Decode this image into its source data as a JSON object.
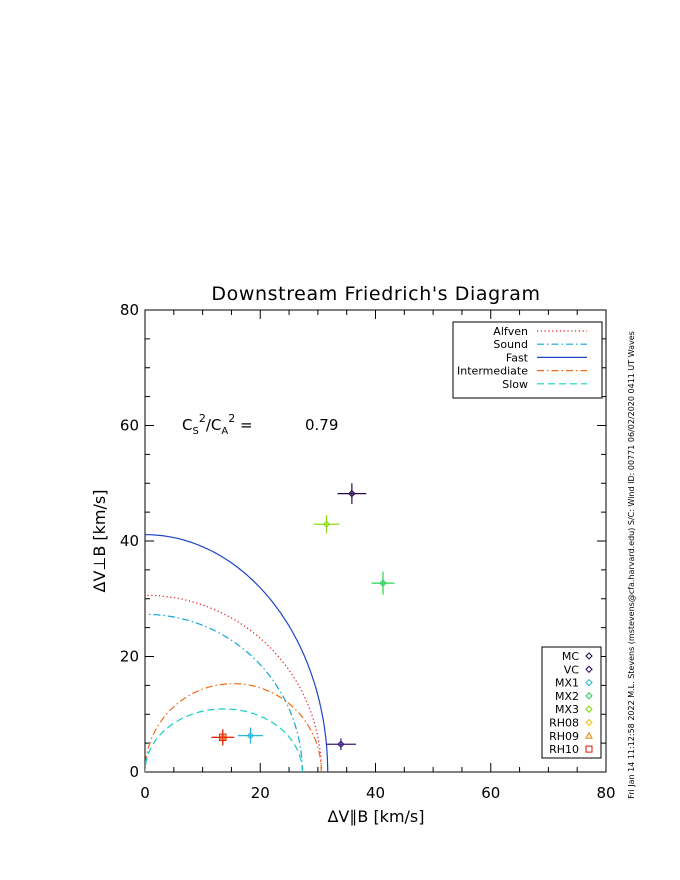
{
  "chart_data": {
    "type": "scatter",
    "title": "Downstream Friedrich's Diagram",
    "xlabel": "ΔV∥B [km/s]",
    "ylabel": "ΔV⊥B [km/s]",
    "xlim": [
      0,
      80
    ],
    "ylim": [
      0,
      80
    ],
    "x_ticks": [
      0,
      20,
      40,
      60,
      80
    ],
    "y_ticks": [
      0,
      20,
      40,
      60,
      80
    ],
    "annotation": {
      "ratio_text": "0.79",
      "ratio_value": 0.79
    },
    "wave_curves": {
      "legend_placement": "top-right",
      "entries": [
        {
          "name": "Alfven",
          "color": "#e8131f",
          "dash": "dotted",
          "speed": 30.6
        },
        {
          "name": "Sound",
          "color": "#12a6d8",
          "dash": "dash-dot",
          "speed": 27.3
        },
        {
          "name": "Fast",
          "color": "#1c45c8",
          "dash": "solid",
          "speed": 41.1,
          "x_max": 31.7
        },
        {
          "name": "Intermediate",
          "color": "#ef6b17",
          "dash": "dash-dot",
          "speed": 30.6
        },
        {
          "name": "Slow",
          "color": "#16cfc1",
          "dash": "dashed",
          "speed": 27.3,
          "x_max": 27.3
        }
      ]
    },
    "solutions": {
      "legend_placement": "bottom-right",
      "series": [
        {
          "name": "MC",
          "marker": "diamond",
          "color": "#2c0a4f",
          "x": 35.9,
          "y": 48.2,
          "x_err": 2.5,
          "y_err": 1.8
        },
        {
          "name": "VC",
          "marker": "diamond",
          "color": "#3d1a78",
          "x": 34.0,
          "y": 4.8,
          "x_err": 2.6,
          "y_err": 1.0
        },
        {
          "name": "MX1",
          "marker": "diamond",
          "color": "#2bb7d9",
          "x": 18.3,
          "y": 6.3,
          "x_err": 2.2,
          "y_err": 1.4
        },
        {
          "name": "MX2",
          "marker": "diamond",
          "color": "#29d456",
          "x": 41.3,
          "y": 32.7,
          "x_err": 2.0,
          "y_err": 2.0
        },
        {
          "name": "MX3",
          "marker": "diamond",
          "color": "#8fd81a",
          "x": 31.5,
          "y": 42.9,
          "x_err": 2.2,
          "y_err": 1.6
        },
        {
          "name": "RH08",
          "marker": "diamond",
          "color": "#f2c013",
          "x": 13.5,
          "y": 6.0,
          "x_err": 1.5,
          "y_err": 1.2
        },
        {
          "name": "RH09",
          "marker": "triangle",
          "color": "#f08a18",
          "x": 13.5,
          "y": 6.0,
          "x_err": 1.8,
          "y_err": 1.3
        },
        {
          "name": "RH10",
          "marker": "square",
          "color": "#e8251c",
          "x": 13.5,
          "y": 6.0,
          "x_err": 2.0,
          "y_err": 1.4
        }
      ]
    }
  },
  "side_note": "Fri Jan 14 11:12:58 2022  M.L. Stevens (mstevens@cfa.harvard.edu)  S/C: Wind ID: 00771 06/02/2020  0411 UT Waves"
}
